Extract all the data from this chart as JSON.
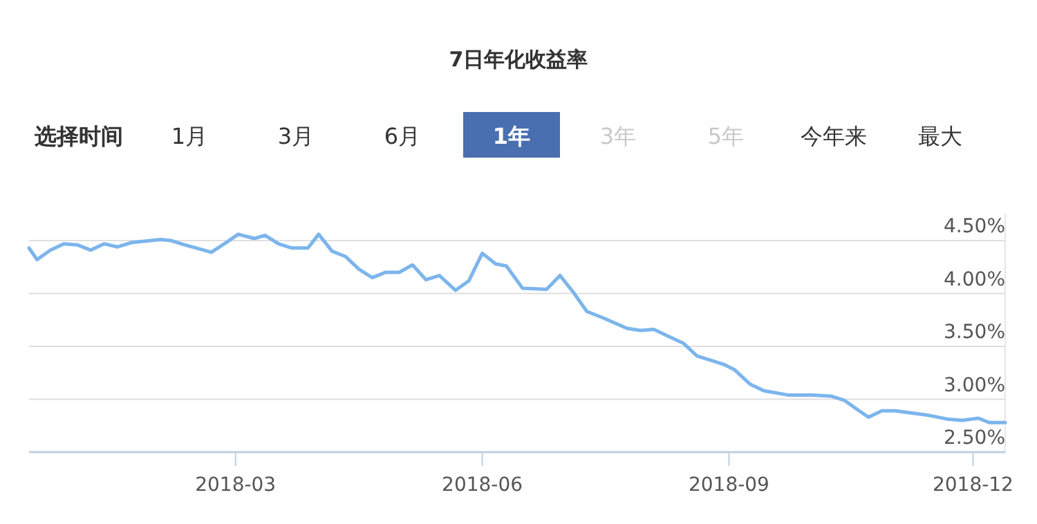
{
  "chart_data": {
    "type": "line",
    "title": "7日年化收益率",
    "annotations": [
      "选择时间",
      "1月",
      "3月",
      "6月",
      "1年",
      "3年",
      "5年",
      "今年来",
      "最大"
    ],
    "x": [
      "2017-12-14",
      "2017-12-17",
      "2017-12-22",
      "2017-12-27",
      "2018-01-01",
      "2018-01-06",
      "2018-01-11",
      "2018-01-16",
      "2018-01-21",
      "2018-02-01",
      "2018-02-05",
      "2018-02-10",
      "2018-02-20",
      "2018-02-26",
      "2018-03-02",
      "2018-03-08",
      "2018-03-12",
      "2018-03-17",
      "2018-03-22",
      "2018-03-28",
      "2018-04-01",
      "2018-04-06",
      "2018-04-11",
      "2018-04-16",
      "2018-04-21",
      "2018-04-26",
      "2018-05-01",
      "2018-05-06",
      "2018-05-11",
      "2018-05-16",
      "2018-05-22",
      "2018-05-27",
      "2018-06-01",
      "2018-06-06",
      "2018-06-10",
      "2018-06-16",
      "2018-06-25",
      "2018-06-30",
      "2018-07-05",
      "2018-07-10",
      "2018-07-16",
      "2018-07-25",
      "2018-07-30",
      "2018-08-04",
      "2018-08-09",
      "2018-08-15",
      "2018-08-20",
      "2018-08-25",
      "2018-08-30",
      "2018-09-03",
      "2018-09-09",
      "2018-09-14",
      "2018-09-23",
      "2018-10-02",
      "2018-10-09",
      "2018-10-14",
      "2018-10-19",
      "2018-10-23",
      "2018-10-28",
      "2018-11-02",
      "2018-11-14",
      "2018-11-22",
      "2018-11-27",
      "2018-12-03",
      "2018-12-07",
      "2018-12-13"
    ],
    "series": [
      {
        "color": "#7cb5ec",
        "values": [
          4.43,
          4.32,
          4.41,
          4.47,
          4.46,
          4.41,
          4.47,
          4.44,
          4.48,
          4.51,
          4.5,
          4.46,
          4.39,
          4.49,
          4.56,
          4.52,
          4.55,
          4.47,
          4.43,
          4.43,
          4.56,
          4.4,
          4.35,
          4.23,
          4.15,
          4.2,
          4.2,
          4.27,
          4.13,
          4.17,
          4.03,
          4.12,
          4.38,
          4.28,
          4.26,
          4.05,
          4.04,
          4.17,
          4.01,
          3.83,
          3.77,
          3.67,
          3.65,
          3.66,
          3.6,
          3.53,
          3.41,
          3.37,
          3.33,
          3.28,
          3.14,
          3.08,
          3.04,
          3.04,
          3.03,
          2.99,
          2.9,
          2.83,
          2.89,
          2.89,
          2.85,
          2.81,
          2.8,
          2.82,
          2.78,
          2.78
        ]
      }
    ],
    "xlim": [
      "2017-12-14",
      "2018-12-13"
    ],
    "xticks": [
      {
        "value": "2018-03-01",
        "label": "2018-03"
      },
      {
        "value": "2018-06-01",
        "label": "2018-06"
      },
      {
        "value": "2018-09-01",
        "label": "2018-09"
      },
      {
        "value": "2018-12-01",
        "label": "2018-12"
      }
    ],
    "ylim": [
      2.5,
      4.75
    ],
    "yticks": [
      {
        "value": 2.5,
        "label": "2.50%"
      },
      {
        "value": 3,
        "label": "3.00%"
      },
      {
        "value": 3.5,
        "label": "3.50%"
      },
      {
        "value": 4,
        "label": "4.00%"
      },
      {
        "value": 4.5,
        "label": "4.50%"
      }
    ],
    "grid": "y",
    "marker": "none",
    "line_style": "solid"
  }
}
